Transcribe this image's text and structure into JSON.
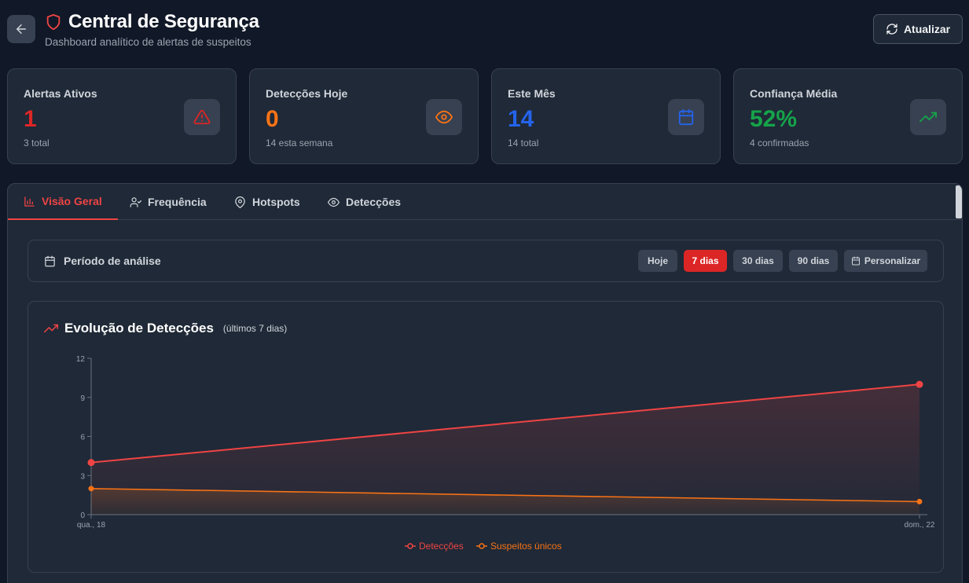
{
  "header": {
    "title": "Central de Segurança",
    "subtitle": "Dashboard analítico de alertas de suspeitos",
    "refresh_label": "Atualizar"
  },
  "stats": [
    {
      "label": "Alertas Ativos",
      "value": "1",
      "sub": "3 total",
      "color": "#dc2626",
      "icon": "alert-triangle-icon"
    },
    {
      "label": "Detecções Hoje",
      "value": "0",
      "sub": "14 esta semana",
      "color": "#f97316",
      "icon": "eye-icon"
    },
    {
      "label": "Este Mês",
      "value": "14",
      "sub": "14 total",
      "color": "#2563eb",
      "icon": "calendar-icon"
    },
    {
      "label": "Confiança Média",
      "value": "52%",
      "sub": "4 confirmadas",
      "color": "#16a34a",
      "icon": "trending-up-icon"
    }
  ],
  "tabs": [
    {
      "label": "Visão Geral",
      "icon": "bar-chart-icon",
      "active": true
    },
    {
      "label": "Frequência",
      "icon": "user-check-icon",
      "active": false
    },
    {
      "label": "Hotspots",
      "icon": "map-pin-icon",
      "active": false
    },
    {
      "label": "Detecções",
      "icon": "eye-icon",
      "active": false
    }
  ],
  "period": {
    "label": "Período de análise",
    "options": [
      "Hoje",
      "7 dias",
      "30 dias",
      "90 dias",
      "Personalizar"
    ],
    "selected": "7 dias"
  },
  "chart": {
    "title": "Evolução de Detecções",
    "subtitle": "(últimos 7 dias)"
  },
  "chart_data": {
    "type": "area",
    "x": [
      "qua., 18",
      "dom., 22"
    ],
    "series": [
      {
        "name": "Detecções",
        "values": [
          4,
          10
        ],
        "color": "#ef4444"
      },
      {
        "name": "Suspeitos únicos",
        "values": [
          2,
          1
        ],
        "color": "#f97316"
      }
    ],
    "ylim": [
      0,
      12
    ],
    "yticks": [
      0,
      3,
      6,
      9,
      12
    ],
    "grid": false,
    "legend": "bottom"
  }
}
